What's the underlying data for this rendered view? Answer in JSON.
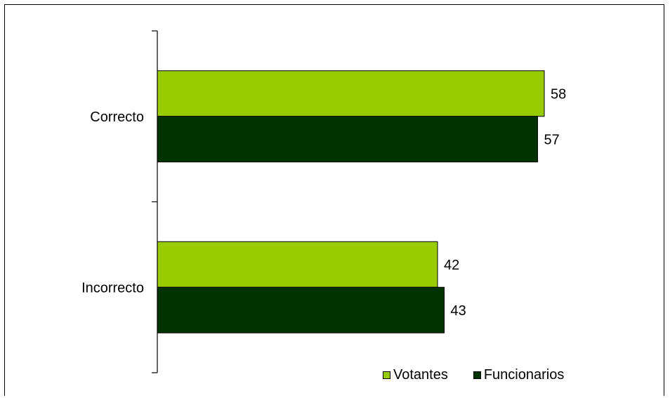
{
  "chart_data": {
    "type": "bar",
    "orientation": "horizontal",
    "title": "",
    "xlabel": "",
    "ylabel": "",
    "categories": [
      "Correcto",
      "Incorrecto"
    ],
    "series": [
      {
        "name": "Votantes",
        "values": [
          58,
          42
        ],
        "color": "#99cc00"
      },
      {
        "name": "Funcionarios",
        "values": [
          57,
          43
        ],
        "color": "#003300"
      }
    ],
    "xlim": [
      0,
      100
    ],
    "grid": false,
    "legend_position": "bottom-right",
    "show_data_labels": true
  }
}
